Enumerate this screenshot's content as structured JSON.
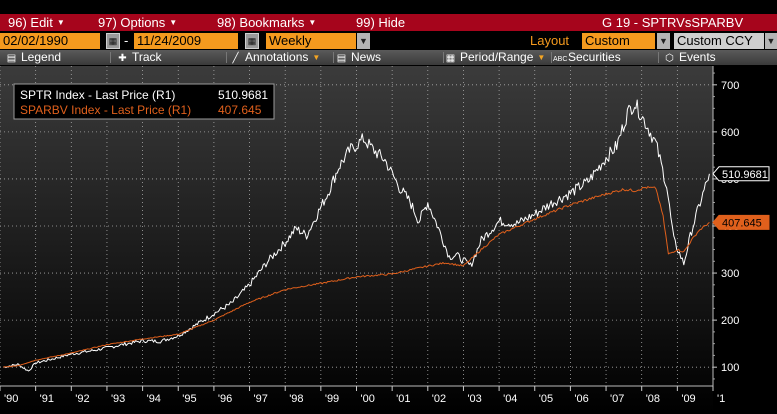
{
  "menu": {
    "items": [
      {
        "label": "96) Edit",
        "caret": true
      },
      {
        "label": "97) Options",
        "caret": true
      },
      {
        "label": "98) Bookmarks",
        "caret": true
      },
      {
        "label": "99) Hide",
        "caret": false
      }
    ],
    "title": "G 19 - SPTRVsSPARBV"
  },
  "controls": {
    "start_date": "02/02/1990",
    "date_separator": "-",
    "end_date": "11/24/2009",
    "period": "Weekly",
    "layout_label": "Layout",
    "layout_value": "Custom",
    "currency": "Custom CCY"
  },
  "toolbar": {
    "legend": "Legend",
    "track": "Track",
    "annotations": "Annotations",
    "news": "News",
    "period_range": "Period/Range",
    "securities": "Securities",
    "events": "Events"
  },
  "colors": {
    "menu_bg": "#a6051c",
    "accent_orange": "#f59a1e",
    "sptr_line": "#ffffff",
    "sparbv_line": "#e0601c"
  },
  "chart_data": {
    "type": "line",
    "x_tick_labels": [
      "'90",
      "'91",
      "'92",
      "'93",
      "'94",
      "'95",
      "'96",
      "'97",
      "'98",
      "'99",
      "'00",
      "'01",
      "'02",
      "'03",
      "'04",
      "'05",
      "'06",
      "'07",
      "'08",
      "'09",
      "'1"
    ],
    "y_tick_labels": [
      "100",
      "200",
      "300",
      "400",
      "500",
      "600",
      "700"
    ],
    "ylim": [
      60,
      740
    ],
    "grid": true,
    "legend_position": "top-left",
    "series": [
      {
        "name": "SPTR Index - Last Price (R1)",
        "last_value": "510.9681",
        "color": "#ffffff",
        "x": [
          1990.09,
          1990.5,
          1990.8,
          1991,
          1991.5,
          1992,
          1992.5,
          1993,
          1993.5,
          1994,
          1994.5,
          1995,
          1995.5,
          1996,
          1996.5,
          1997,
          1997.5,
          1998,
          1998.3,
          1998.6,
          1998.9,
          1999.2,
          1999.5,
          1999.8,
          2000.2,
          2000.5,
          2000.8,
          2001.2,
          2001.5,
          2001.75,
          2002.0,
          2002.3,
          2002.6,
          2002.8,
          2003.2,
          2003.5,
          2004,
          2004.5,
          2005,
          2005.5,
          2006,
          2006.5,
          2007,
          2007.3,
          2007.6,
          2007.8,
          2008.1,
          2008.4,
          2008.7,
          2008.9,
          2009.18,
          2009.4,
          2009.6,
          2009.9
        ],
        "values": [
          100,
          106,
          92,
          109,
          118,
          128,
          134,
          141,
          149,
          156,
          155,
          167,
          190,
          214,
          236,
          275,
          324,
          365,
          395,
          380,
          425,
          470,
          525,
          560,
          585,
          560,
          540,
          482,
          452,
          410,
          450,
          395,
          335,
          338,
          315,
          370,
          410,
          405,
          425,
          450,
          470,
          495,
          545,
          570,
          640,
          662,
          620,
          575,
          485,
          370,
          320,
          390,
          440,
          510.97
        ]
      },
      {
        "name": "SPARBV Index - Last Price (R1)",
        "last_value": "407.645",
        "color": "#e0601c",
        "x": [
          1990.09,
          1990.5,
          1991,
          1992,
          1993,
          1994,
          1995,
          1996,
          1997,
          1998,
          1998.5,
          1999,
          2000,
          2001,
          2002,
          2002.5,
          2003,
          2003.5,
          2004,
          2005,
          2006,
          2007,
          2007.5,
          2007.8,
          2008.1,
          2008.4,
          2008.6,
          2008.75,
          2009,
          2009.18,
          2009.4,
          2009.6,
          2009.9
        ],
        "values": [
          100,
          103,
          115,
          130,
          148,
          160,
          170,
          200,
          238,
          265,
          272,
          278,
          292,
          298,
          315,
          322,
          315,
          350,
          382,
          415,
          445,
          468,
          478,
          475,
          482,
          480,
          420,
          340,
          350,
          345,
          370,
          390,
          407.645
        ]
      }
    ]
  }
}
